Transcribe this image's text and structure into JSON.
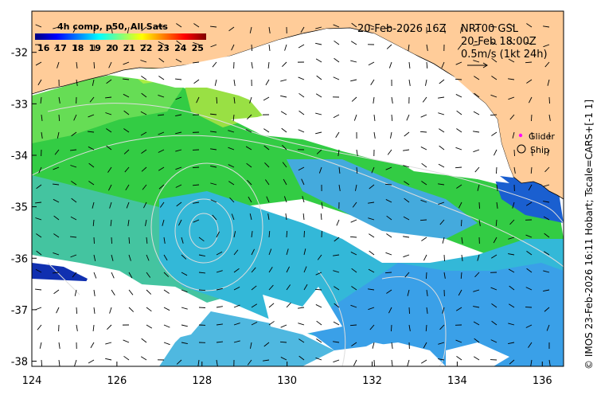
{
  "map": {
    "lon_range": [
      124,
      136.5
    ],
    "lat_range": [
      -38.1,
      -31.2
    ],
    "x_ticks": [
      "124",
      "126",
      "128",
      "130",
      "132",
      "134",
      "136"
    ],
    "y_ticks": [
      "-32",
      "-33",
      "-34",
      "-35",
      "-36",
      "-37",
      "-38"
    ],
    "x_tick_values": [
      124,
      126,
      128,
      130,
      132,
      134,
      136
    ],
    "y_tick_values": [
      -32,
      -33,
      -34,
      -35,
      -36,
      -37,
      -38
    ],
    "land_color": "#ffcc99",
    "coast_color": "#000000"
  },
  "colorbar": {
    "title": "4h comp, p50, All Sats",
    "ticks": [
      "16",
      "17",
      "18",
      "19",
      "20",
      "21",
      "22",
      "23",
      "24",
      "25"
    ],
    "tick_values": [
      16,
      17,
      18,
      19,
      20,
      21,
      22,
      23,
      24,
      25
    ],
    "range": [
      15.5,
      25.5
    ],
    "colors": [
      "#00007f",
      "#0000ff",
      "#007fff",
      "#00ffff",
      "#7fff7f",
      "#ffff00",
      "#ff7f00",
      "#ff0000",
      "#7f0000"
    ]
  },
  "header": {
    "date": "20-Feb-2026 16Z",
    "product": "NRT00 GSL",
    "time": "20-Feb 18:00Z",
    "vector_scale": "0.5m/s (1kt 24h)"
  },
  "legend": {
    "glider": "Glider",
    "ship": "Ship",
    "glider_color": "#ff00ff"
  },
  "side_label": "© IMOS 23-Feb-2026 16:11 Hobart; Tscale=CARS+[-1 1]"
}
